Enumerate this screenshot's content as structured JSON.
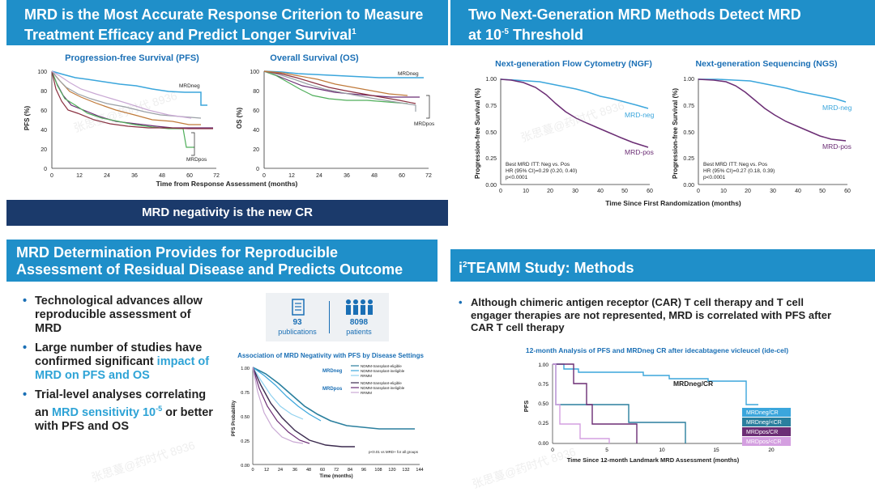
{
  "panel1": {
    "title_line1": "MRD is the Most Accurate Response Criterion to Measure",
    "title_line2": "Treatment Efficacy and Predict Longer Survival",
    "title_sup": "1",
    "pfs_chart": {
      "title": "Progression-free Survival (PFS)",
      "ylabel": "PFS (%)",
      "yticks": [
        "100",
        "80",
        "60",
        "40",
        "20",
        "0"
      ],
      "xticks": [
        "0",
        "12",
        "24",
        "36",
        "48",
        "60",
        "72"
      ],
      "label_neg": "MRDneg",
      "label_pos": "MRDpos"
    },
    "os_chart": {
      "title": "Overall Survival (OS)",
      "ylabel": "OS (%)",
      "yticks": [
        "100",
        "80",
        "60",
        "40",
        "20",
        "0"
      ],
      "xticks": [
        "0",
        "12",
        "24",
        "36",
        "48",
        "60",
        "72"
      ],
      "label_neg": "MRDneg",
      "label_pos": "MRDpos"
    },
    "xlabel": "Time from Response Assessment (months)",
    "banner": "MRD negativity is the new CR"
  },
  "panel2": {
    "title_line1": "Two Next-Generation MRD Methods Detect MRD",
    "title_line2_pre": "at 10",
    "title_line2_sup": "-5",
    "title_line2_post": " Threshold",
    "ngf": {
      "title": "Next-generation Flow Cytometry (NGF)",
      "ylabel": "Progression-free Survival (%)",
      "yticks": [
        "1.00",
        "0.75",
        "0.50",
        "0.25",
        "0.00"
      ],
      "xticks": [
        "0",
        "10",
        "20",
        "30",
        "40",
        "50",
        "60"
      ],
      "neg": "MRD-neg",
      "pos": "MRD-pos",
      "stat1": "Best MRD ITT: Neg vs. Pos",
      "stat2": "HR (95% CI)=0.29 (0.20, 0.40)",
      "stat3": "p<0.0001"
    },
    "ngs": {
      "title": "Next-generation Sequencing (NGS)",
      "ylabel": "Progression-free Survival (%)",
      "yticks": [
        "1.00",
        "0.75",
        "0.50",
        "0.25",
        "0.00"
      ],
      "xticks": [
        "0",
        "10",
        "20",
        "30",
        "40",
        "50",
        "60"
      ],
      "neg": "MRD-neg",
      "pos": "MRD-pos",
      "stat1": "Best MRD ITT: Neg vs. Pos",
      "stat2": "HR (95% CI)=0.27 (0.18, 0.39)",
      "stat3": "p<0.0001"
    },
    "xlabel": "Time Since First Randomization (months)"
  },
  "panel3": {
    "title_line1": "MRD Determination Provides for Reproducible",
    "title_line2": "Assessment of Residual Disease and Predicts Outcome",
    "bullets": [
      {
        "pre": "Technological advances allow reproducible assessment of MRD",
        "hl": "",
        "post": ""
      },
      {
        "pre": "Large number of studies have confirmed significant ",
        "hl": "impact of MRD on PFS and OS",
        "post": ""
      },
      {
        "pre": "Trial-level analyses correlating an ",
        "hl": "MRD sensitivity 10",
        "sup": "-5",
        "post": " or better with PFS and OS"
      }
    ],
    "stats": {
      "pubs_n": "93",
      "pubs_label": "publications",
      "pts_n": "8098",
      "pts_label": "patients"
    },
    "chart": {
      "title": "Association of MRD Negativity with PFS by Disease Settings",
      "ylabel": "PFS Probability",
      "xlabel": "Time (months)",
      "yticks": [
        "1.00",
        "0.75",
        "0.50",
        "0.25",
        "0.00"
      ],
      "xticks": [
        "0",
        "12",
        "24",
        "36",
        "48",
        "60",
        "72",
        "84",
        "96",
        "108",
        "120",
        "132",
        "144"
      ],
      "grp_neg": "MRDneg",
      "grp_pos": "MRDpos",
      "leg": [
        "NDMM-transplant-eligible",
        "NDMM-transplant-ineligible",
        "RRMM"
      ],
      "note": "p<0.01 vs MRD+ for all groups"
    }
  },
  "panel4": {
    "title_pre": "i",
    "title_sup": "2",
    "title_post": "TEAMM Study: Methods",
    "bullet": "Although chimeric antigen receptor (CAR) T cell therapy and T cell engager therapies are not represented, MRD is correlated with PFS after CAR T cell therapy",
    "chart": {
      "title": "12-month Analysis of PFS and MRDneg CR after idecabtagene vicleucel (ide-cel)",
      "ylabel": "PFS",
      "xlabel": "Time Since 12-month Landmark MRD Assessment (months)",
      "yticks": [
        "1.00",
        "0.75",
        "0.50",
        "0.25",
        "0.00"
      ],
      "xticks": [
        "0",
        "5",
        "10",
        "15",
        "20"
      ],
      "label": "MRDneg/CR",
      "legend": [
        "MRDneg/CR",
        "MRDneg/<CR",
        "MRDpos/CR",
        "MRDpos/<CR"
      ]
    }
  },
  "watermark": "张思蔓@药时代 8936",
  "colors": {
    "header": "#1f8fc9",
    "navy": "#1b3a6b",
    "neg": "#3ba6dc",
    "pos": "#6b2d74",
    "teal": "#2a7f9e"
  }
}
